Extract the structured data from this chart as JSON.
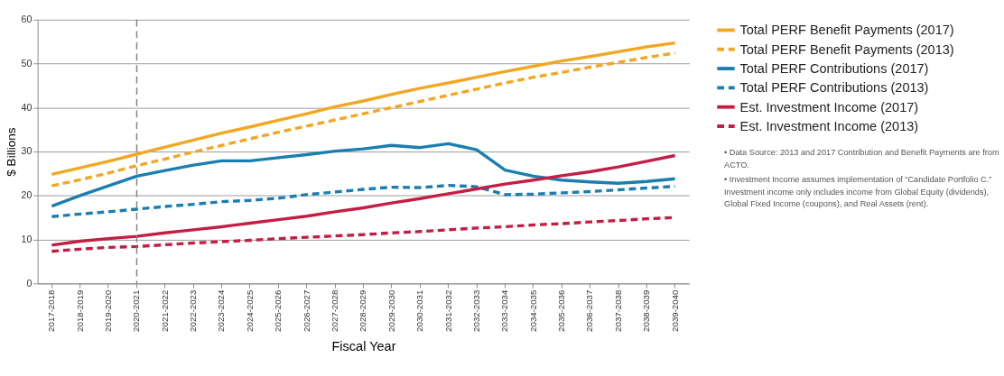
{
  "chart_data": {
    "type": "line",
    "xlabel": "Fiscal Year",
    "ylabel": "$ Billions",
    "categories": [
      "2017-2018",
      "2018-2019",
      "2019-2020",
      "2020-2021",
      "2021-2022",
      "2022-2023",
      "2023-2024",
      "2024-2025",
      "2025-2026",
      "2026-2027",
      "2027-2028",
      "2028-2029",
      "2029-2030",
      "2030-2031",
      "2031-2032",
      "2032-2033",
      "2033-2034",
      "2034-2035",
      "2035-2036",
      "2036-2037",
      "2037-2038",
      "2038-2039",
      "2039-2040"
    ],
    "series": [
      {
        "name": "Total PERF Benefit Payments (2017)",
        "color": "#f2a722",
        "line_style": "solid",
        "values": [
          24.8,
          26.3,
          27.8,
          29.4,
          31.0,
          32.6,
          34.2,
          35.6,
          37.1,
          38.6,
          40.2,
          41.5,
          43.0,
          44.4,
          45.6,
          46.9,
          48.2,
          49.4,
          50.6,
          51.6,
          52.7,
          53.8,
          54.7
        ]
      },
      {
        "name": "Total PERF Benefit Payments (2013)",
        "color": "#f2a722",
        "line_style": "dashed",
        "values": [
          22.2,
          23.6,
          25.1,
          26.8,
          28.3,
          29.9,
          31.4,
          32.9,
          34.4,
          35.8,
          37.2,
          38.6,
          40.0,
          41.4,
          42.8,
          44.2,
          45.6,
          46.9,
          48.0,
          49.2,
          50.3,
          51.4,
          52.4
        ]
      },
      {
        "name": "Total PERF Contributions (2017)",
        "color": "#1a7fb0",
        "line_style": "solid",
        "values": [
          17.6,
          20.0,
          22.2,
          24.4,
          25.7,
          26.9,
          27.9,
          27.9,
          28.6,
          29.3,
          30.1,
          30.6,
          31.4,
          30.9,
          31.8,
          30.4,
          25.8,
          24.4,
          23.5,
          23.1,
          22.8,
          23.2,
          23.8
        ]
      },
      {
        "name": "Total PERF Contributions (2013)",
        "color": "#1a7fb0",
        "line_style": "dashed",
        "values": [
          15.2,
          15.8,
          16.3,
          16.9,
          17.5,
          18.0,
          18.6,
          18.9,
          19.4,
          20.2,
          20.8,
          21.4,
          21.9,
          21.8,
          22.3,
          22.0,
          20.2,
          20.3,
          20.6,
          20.9,
          21.3,
          21.7,
          22.1
        ]
      },
      {
        "name": "Est. Investment Income (2017)",
        "color": "#c41e45",
        "line_style": "solid",
        "values": [
          8.7,
          9.6,
          10.2,
          10.7,
          11.5,
          12.2,
          12.9,
          13.7,
          14.5,
          15.3,
          16.3,
          17.2,
          18.3,
          19.3,
          20.4,
          21.5,
          22.6,
          23.5,
          24.5,
          25.4,
          26.5,
          27.8,
          29.1
        ]
      },
      {
        "name": "Est. Investment Income (2013)",
        "color": "#c41e45",
        "line_style": "dashed",
        "values": [
          7.3,
          7.8,
          8.2,
          8.4,
          8.8,
          9.2,
          9.5,
          9.8,
          10.2,
          10.5,
          10.8,
          11.1,
          11.5,
          11.8,
          12.2,
          12.6,
          12.9,
          13.3,
          13.6,
          14.0,
          14.3,
          14.7,
          15.0
        ]
      }
    ],
    "ylim": [
      0,
      60
    ],
    "yticks": [
      0,
      10,
      20,
      30,
      40,
      50,
      60
    ],
    "grid": "y",
    "legend": "right",
    "marker": "none",
    "ref_lines": [
      {
        "axis": "x",
        "value": "2020-2021",
        "color": "#808080",
        "line_style": "dashed"
      }
    ],
    "annotations": [
      "• Data Source: 2013 and 2017 Contribution and Benefit Payments are from ACTO.",
      "• Investment Income assumes implementation of “Candidate Portfolio C.” Investment income only includes income from Global Equity (dividends), Global Fixed Income (coupons),  and Real Assets (rent)."
    ]
  }
}
